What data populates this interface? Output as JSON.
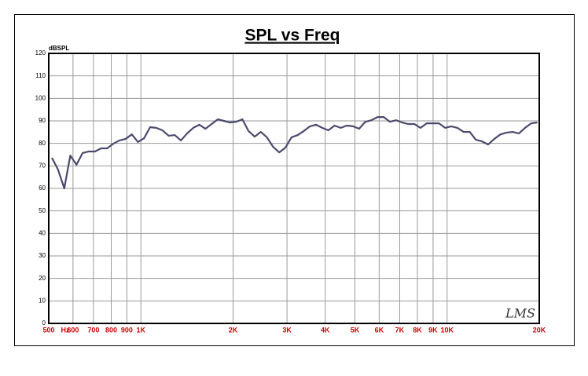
{
  "chart_data": {
    "type": "line",
    "title": "SPL vs Freq",
    "ylabel": "dBSPL",
    "xlabel": "Hz",
    "logo": "LMS",
    "xscale": "log",
    "grid": true,
    "color": "#4b4a6e",
    "xlim": [
      500,
      20000
    ],
    "ylim": [
      0,
      120
    ],
    "yticks": [
      0,
      10,
      20,
      30,
      40,
      50,
      60,
      70,
      80,
      90,
      100,
      110,
      120
    ],
    "xticks": [
      500,
      600,
      700,
      800,
      900,
      {
        "value": 1000,
        "label": "1K"
      },
      {
        "value": 2000,
        "label": "2K"
      },
      {
        "value": 3000,
        "label": "3K"
      },
      {
        "value": 4000,
        "label": "4K"
      },
      {
        "value": 5000,
        "label": "5K"
      },
      {
        "value": 6000,
        "label": "6K"
      },
      {
        "value": 7000,
        "label": "7K"
      },
      {
        "value": 8000,
        "label": "8K"
      },
      {
        "value": 9000,
        "label": "9K"
      },
      {
        "value": 10000,
        "label": "10K"
      },
      {
        "value": 20000,
        "label": "20K"
      }
    ],
    "x": [
      512,
      536,
      562,
      588,
      616,
      645,
      676,
      708,
      741,
      776,
      813,
      851,
      891,
      934,
      978,
      1024,
      1072,
      1123,
      1176,
      1232,
      1290,
      1351,
      1415,
      1482,
      1552,
      1625,
      1702,
      1783,
      1867,
      1956,
      2048,
      2145,
      2246,
      2353,
      2464,
      2580,
      2702,
      2830,
      2964,
      3104,
      3251,
      3405,
      3566,
      3734,
      3911,
      4096,
      4290,
      4493,
      4705,
      4928,
      5161,
      5405,
      5661,
      5929,
      6209,
      6502,
      6810,
      7132,
      7469,
      7822,
      8192,
      8579,
      8985,
      9410,
      9855,
      10321,
      10809,
      11320,
      11856,
      12417,
      13004,
      13619,
      14263,
      14938,
      15644,
      16384,
      17159,
      17970,
      18820,
      19710
    ],
    "values": [
      73.6,
      68.4,
      60,
      74.6,
      70.5,
      75.7,
      76.4,
      76.4,
      77.8,
      77.8,
      79.9,
      81.3,
      82,
      84,
      80.6,
      82.3,
      87.2,
      86.9,
      85.8,
      83.4,
      83.7,
      81.3,
      84.4,
      86.9,
      88.3,
      86.5,
      88.6,
      90.7,
      90,
      89.3,
      89.6,
      90.7,
      85.5,
      83,
      85.1,
      82.7,
      78.5,
      76,
      78.1,
      82.7,
      83.7,
      85.5,
      87.6,
      88.3,
      86.9,
      85.8,
      87.9,
      86.9,
      87.9,
      87.6,
      86.5,
      89.6,
      90.3,
      91.7,
      91.7,
      89.6,
      90.3,
      89.3,
      88.6,
      88.6,
      86.9,
      88.9,
      88.9,
      88.9,
      86.9,
      87.6,
      86.9,
      85.1,
      85.1,
      81.6,
      80.9,
      79.5,
      82,
      84,
      84.8,
      85.1,
      84.4,
      86.9,
      88.9,
      89.3
    ]
  }
}
